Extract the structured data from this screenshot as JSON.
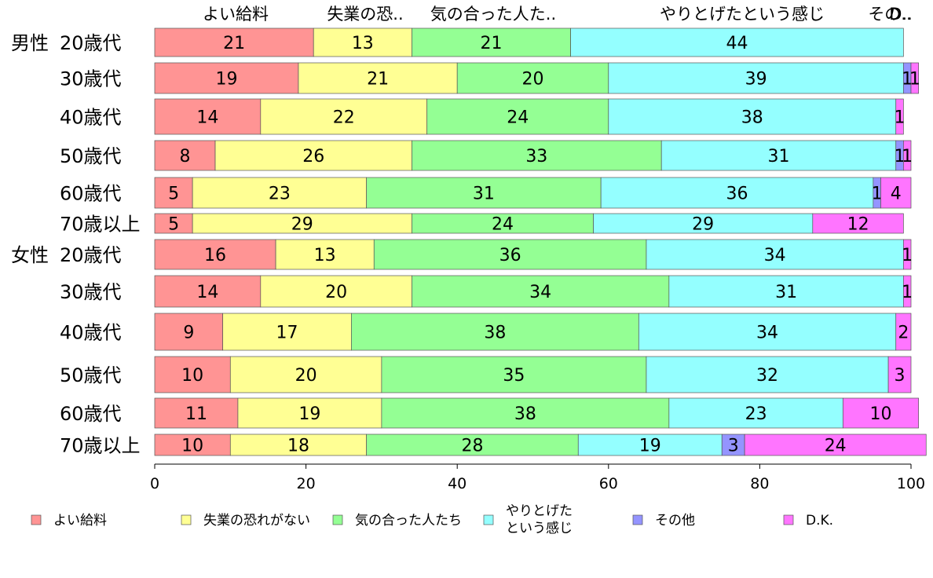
{
  "chart_data": {
    "type": "bar",
    "orientation": "horizontal",
    "stacked": true,
    "xlim": [
      0,
      100
    ],
    "x_ticks": [
      0,
      20,
      40,
      60,
      80,
      100
    ],
    "grid": false,
    "legend_position": "bottom",
    "top_category_labels": [
      "よい給料",
      "失業の恐..",
      "気の合った人た..",
      "やりとげたという感じ",
      "その..",
      "D.."
    ],
    "groups": [
      {
        "label": "男性",
        "rows": [
          "20歳代",
          "30歳代",
          "40歳代",
          "50歳代",
          "60歳代",
          "70歳以上"
        ]
      },
      {
        "label": "女性",
        "rows": [
          "20歳代",
          "30歳代",
          "40歳代",
          "50歳代",
          "60歳代",
          "70歳以上"
        ]
      }
    ],
    "series": [
      {
        "name": "よい給料",
        "color": "#ff9494",
        "values": [
          21,
          19,
          14,
          8,
          5,
          5,
          16,
          14,
          9,
          10,
          11,
          10
        ]
      },
      {
        "name": "失業の恐れがない",
        "color": "#ffff94",
        "values": [
          13,
          21,
          22,
          26,
          23,
          29,
          13,
          20,
          17,
          20,
          19,
          18
        ]
      },
      {
        "name": "気の合った人たち",
        "color": "#94ff94",
        "values": [
          21,
          20,
          24,
          33,
          31,
          24,
          36,
          34,
          38,
          35,
          38,
          28
        ]
      },
      {
        "name": "やりとげたという感じ",
        "legend_lines": [
          "やりとげた",
          "という感じ"
        ],
        "color": "#94ffff",
        "values": [
          44,
          39,
          38,
          31,
          36,
          29,
          34,
          31,
          34,
          32,
          23,
          19
        ]
      },
      {
        "name": "その他",
        "color": "#9494ff",
        "values": [
          0,
          1,
          0,
          1,
          1,
          0,
          0,
          0,
          0,
          0,
          0,
          3
        ]
      },
      {
        "name": "D.K.",
        "color": "#ff75ff",
        "values": [
          0,
          1,
          1,
          1,
          4,
          12,
          1,
          1,
          2,
          3,
          10,
          24
        ]
      }
    ]
  }
}
